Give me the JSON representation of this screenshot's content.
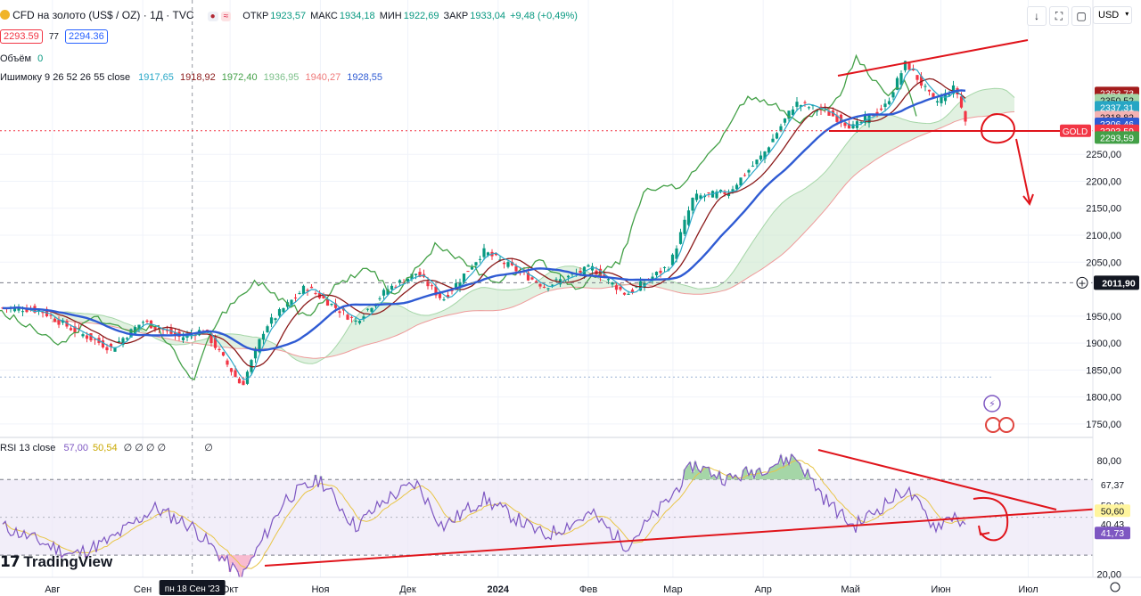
{
  "header": {
    "symbol_title": "CFD на золото (US$ / OZ) · 1Д · TVC",
    "open_label": "ОТКР",
    "open_value": "1923,57",
    "high_label": "МАКС",
    "high_value": "1934,18",
    "low_label": "МИН",
    "low_value": "1922,69",
    "close_label": "ЗАКР",
    "close_value": "1933,04",
    "change": "+9,48 (+0,49%)",
    "bid": "2293.59",
    "spread": "77",
    "ask": "2294.36",
    "volume_label": "Объём",
    "volume_value": "0",
    "ichimoku_label": "Ишимоку 9 26 52 26 55 close",
    "ichimoku_values": [
      "1917,65",
      "1918,92",
      "1972,40",
      "1936,95",
      "1940,27",
      "1928,55"
    ],
    "rsi_label": "RSI 13 close",
    "rsi_values": [
      "57,00",
      "50,54"
    ],
    "rsi_extra": "∅ ∅ ∅ ∅",
    "rsi_extra2": "∅",
    "currency": "USD",
    "logo_text": "TradingView"
  },
  "colors": {
    "up": "#089981",
    "down": "#f23645",
    "conversion": "#2aa8c8",
    "base": "#8b1a1a",
    "lagging": "#43a047",
    "ma": "#2f5bd3",
    "rsi": "#7e57c2",
    "rsi_ma": "#e8c547",
    "annot": "#e0141b"
  },
  "chart_data": [
    {
      "type": "candlestick",
      "title": "CFD на золото (US$ / OZ) · 1Д · TVC",
      "x_labels": [
        "Авг",
        "Сен",
        "Окт",
        "Ноя",
        "Дек",
        "2024",
        "Фев",
        "Мар",
        "Апр",
        "Май",
        "Июн",
        "Июл"
      ],
      "crosshair_date": "пн 18 Сен '23",
      "y_ticks": [
        1750,
        1800,
        1850,
        1900,
        1950,
        2050,
        2100,
        2150,
        2200,
        2250
      ],
      "ylim": [
        1735,
        2470
      ],
      "price_tags": [
        "2363,73",
        "2350,52",
        "2337,31",
        "2318,82",
        "2306,46",
        "2293,59",
        "2293,59",
        "2011,90"
      ],
      "price_tag_symbol": "GOLD",
      "close_path": [
        [
          "2023-07-20",
          1965
        ],
        [
          "2023-07-28",
          1960
        ],
        [
          "2023-08-08",
          1925
        ],
        [
          "2023-08-21",
          1890
        ],
        [
          "2023-09-01",
          1940
        ],
        [
          "2023-09-14",
          1910
        ],
        [
          "2023-09-22",
          1925
        ],
        [
          "2023-10-05",
          1820
        ],
        [
          "2023-10-13",
          1930
        ],
        [
          "2023-10-27",
          2005
        ],
        [
          "2023-11-13",
          1940
        ],
        [
          "2023-11-24",
          2000
        ],
        [
          "2023-12-04",
          2030
        ],
        [
          "2023-12-13",
          1980
        ],
        [
          "2023-12-27",
          2070
        ],
        [
          "2024-01-17",
          2005
        ],
        [
          "2024-02-02",
          2040
        ],
        [
          "2024-02-14",
          1990
        ],
        [
          "2024-02-29",
          2045
        ],
        [
          "2024-03-08",
          2170
        ],
        [
          "2024-03-20",
          2180
        ],
        [
          "2024-04-01",
          2250
        ],
        [
          "2024-04-12",
          2345
        ],
        [
          "2024-04-22",
          2330
        ],
        [
          "2024-05-02",
          2300
        ],
        [
          "2024-05-13",
          2340
        ],
        [
          "2024-05-20",
          2420
        ],
        [
          "2024-05-30",
          2345
        ],
        [
          "2024-06-06",
          2375
        ],
        [
          "2024-06-10",
          2300
        ]
      ]
    },
    {
      "type": "line",
      "title": "RSI 13 close",
      "y_ticks": [
        20,
        80
      ],
      "ylim": [
        15,
        88
      ],
      "value_tags": [
        "67,37",
        "50,00",
        "50,60",
        "40,43",
        "41,73"
      ],
      "rsi_path": [
        [
          "2023-07-20",
          42
        ],
        [
          "2023-08-08",
          30
        ],
        [
          "2023-08-21",
          38
        ],
        [
          "2023-09-05",
          55
        ],
        [
          "2023-09-18",
          45
        ],
        [
          "2023-10-05",
          18
        ],
        [
          "2023-10-20",
          60
        ],
        [
          "2023-11-01",
          70
        ],
        [
          "2023-11-13",
          45
        ],
        [
          "2023-11-24",
          60
        ],
        [
          "2023-12-04",
          68
        ],
        [
          "2023-12-13",
          45
        ],
        [
          "2023-12-27",
          60
        ],
        [
          "2024-01-17",
          40
        ],
        [
          "2024-02-02",
          52
        ],
        [
          "2024-02-14",
          35
        ],
        [
          "2024-02-29",
          60
        ],
        [
          "2024-03-08",
          78
        ],
        [
          "2024-03-20",
          70
        ],
        [
          "2024-04-12",
          82
        ],
        [
          "2024-04-22",
          60
        ],
        [
          "2024-05-02",
          45
        ],
        [
          "2024-05-20",
          65
        ],
        [
          "2024-05-30",
          45
        ],
        [
          "2024-06-06",
          52
        ],
        [
          "2024-06-10",
          41
        ]
      ]
    }
  ]
}
